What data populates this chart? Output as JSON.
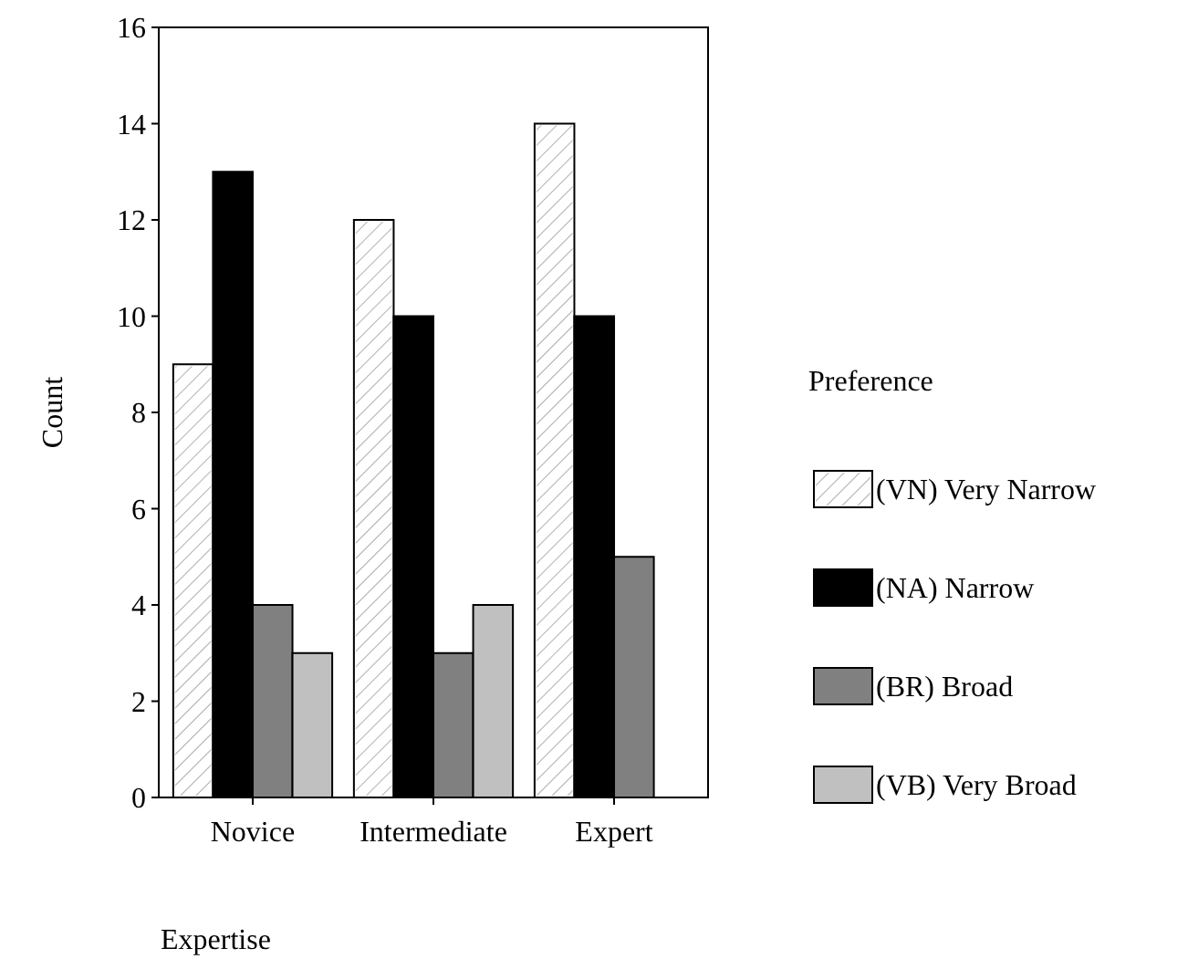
{
  "chart_data": {
    "type": "bar",
    "xlabel": "Expertise",
    "ylabel": "Count",
    "legend_title": "Preference",
    "categories": [
      "Novice",
      "Intermediate",
      "Expert"
    ],
    "series": [
      {
        "name": "(VN) Very Narrow",
        "color": "#ffffff",
        "values": [
          9,
          12,
          14
        ]
      },
      {
        "name": "(NA) Narrow",
        "color": "#000000",
        "values": [
          13,
          10,
          10
        ]
      },
      {
        "name": "(BR) Broad",
        "color": "#808080",
        "values": [
          4,
          3,
          5
        ]
      },
      {
        "name": "(VB) Very Broad",
        "color": "#c0c0c0",
        "values": [
          3,
          4,
          null
        ]
      }
    ],
    "ylim": [
      0,
      16
    ],
    "yticks": [
      0,
      2,
      4,
      6,
      8,
      10,
      12,
      14,
      16
    ],
    "grid": false,
    "legend": "right"
  }
}
